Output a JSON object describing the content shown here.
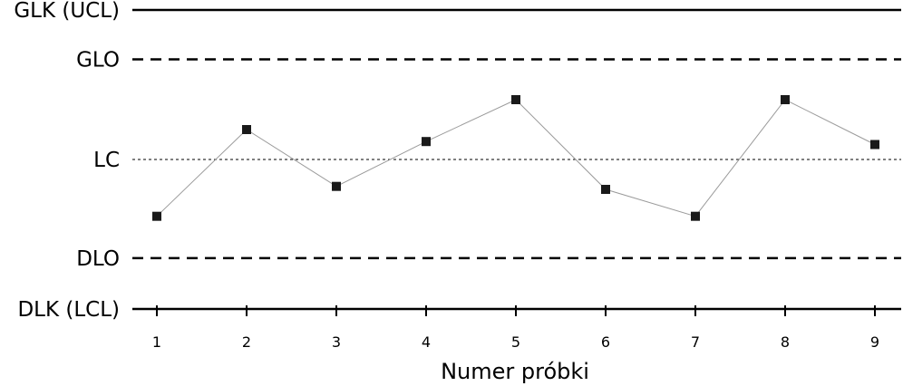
{
  "chart_data": {
    "type": "line",
    "title": "",
    "xlabel": "Numer próbki",
    "ylabel": "",
    "x": [
      1,
      2,
      3,
      4,
      5,
      6,
      7,
      8,
      9
    ],
    "ylim": [
      0,
      100
    ],
    "series": [
      {
        "values": [
          31,
          60,
          41,
          56,
          70,
          40,
          31,
          70,
          55
        ]
      }
    ],
    "reference_lines": [
      {
        "label": "GLK (UCL)",
        "value": 100,
        "style": "solid"
      },
      {
        "label": "GLO",
        "value": 83.5,
        "style": "dashed"
      },
      {
        "label": "LC",
        "value": 50,
        "style": "dotted"
      },
      {
        "label": "DLO",
        "value": 17,
        "style": "dashed"
      },
      {
        "label": "DLK (LCL)",
        "value": 0,
        "style": "solid"
      }
    ],
    "grid": false,
    "legend": "none"
  }
}
